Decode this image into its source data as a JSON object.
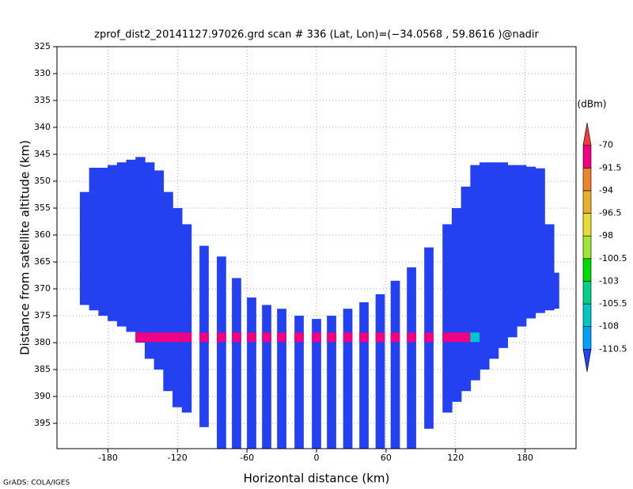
{
  "chart_data": {
    "type": "profile",
    "title": "zprof_dist2_20141127.97026.grd  scan # 336  (Lat, Lon)=(−34.0568 , 59.8616 )@nadir",
    "x_label": "Horizontal distance (km)",
    "y_label": "Distance from satellite altitude (km)",
    "footer": "GrADS: COLA/IGES",
    "xlim": [
      -224,
      224
    ],
    "ylim": [
      325,
      399.7
    ],
    "xticks": [
      -180,
      -120,
      -60,
      0,
      60,
      120,
      180
    ],
    "yticks": [
      325,
      330,
      335,
      340,
      345,
      350,
      355,
      360,
      365,
      370,
      375,
      380,
      385,
      390,
      395
    ],
    "grid": true,
    "beam_dbm": -112,
    "surface_altitude": 379,
    "beams": [
      {
        "x": -200,
        "top": 352,
        "bottom": 373,
        "width": 8.5,
        "surface": null
      },
      {
        "x": -192,
        "top": 347.5,
        "bottom": 374,
        "width": 8.5,
        "surface": null
      },
      {
        "x": -184,
        "top": 347.5,
        "bottom": 375,
        "width": 8.5,
        "surface": null
      },
      {
        "x": -176,
        "top": 347,
        "bottom": 376,
        "width": 8.5,
        "surface": null
      },
      {
        "x": -168,
        "top": 346.5,
        "bottom": 377,
        "width": 8.5,
        "surface": null
      },
      {
        "x": -160,
        "top": 346,
        "bottom": 378,
        "width": 8.5,
        "surface": null
      },
      {
        "x": -152,
        "top": 345.5,
        "bottom": 380,
        "width": 8.5,
        "surface": -85
      },
      {
        "x": -144,
        "top": 346.5,
        "bottom": 383,
        "width": 8.5,
        "surface": -80
      },
      {
        "x": -136,
        "top": 348,
        "bottom": 385,
        "width": 8.5,
        "surface": -80
      },
      {
        "x": -128,
        "top": 352,
        "bottom": 389,
        "width": 8.5,
        "surface": -80
      },
      {
        "x": -120,
        "top": 355,
        "bottom": 392,
        "width": 8.5,
        "surface": -80
      },
      {
        "x": -112,
        "top": 358,
        "bottom": 393,
        "width": 8.5,
        "surface": -80
      },
      {
        "x": -97,
        "top": 362,
        "bottom": 395.7,
        "width": 8,
        "surface": -80
      },
      {
        "x": -82,
        "top": 364,
        "bottom": 399.7,
        "width": 8,
        "surface": -80
      },
      {
        "x": -69,
        "top": 368,
        "bottom": 399.7,
        "width": 8,
        "surface": -80
      },
      {
        "x": -56,
        "top": 371.6,
        "bottom": 399.7,
        "width": 8,
        "surface": -80
      },
      {
        "x": -43,
        "top": 373,
        "bottom": 399.7,
        "width": 8,
        "surface": -80
      },
      {
        "x": -30,
        "top": 373.7,
        "bottom": 399.7,
        "width": 8,
        "surface": -80
      },
      {
        "x": -15,
        "top": 375,
        "bottom": 399.7,
        "width": 8,
        "surface": -80
      },
      {
        "x": 0,
        "top": 375.6,
        "bottom": 399.7,
        "width": 8,
        "surface": -80
      },
      {
        "x": 13,
        "top": 375,
        "bottom": 399.7,
        "width": 8,
        "surface": -80
      },
      {
        "x": 27,
        "top": 373.7,
        "bottom": 399.7,
        "width": 8,
        "surface": -80
      },
      {
        "x": 41,
        "top": 372.5,
        "bottom": 399.7,
        "width": 8,
        "surface": -80
      },
      {
        "x": 55,
        "top": 371,
        "bottom": 399.7,
        "width": 8,
        "surface": -80
      },
      {
        "x": 68,
        "top": 368.5,
        "bottom": 399.7,
        "width": 8,
        "surface": -80
      },
      {
        "x": 82,
        "top": 366,
        "bottom": 399.7,
        "width": 8,
        "surface": -80
      },
      {
        "x": 97,
        "top": 362.3,
        "bottom": 396,
        "width": 8,
        "surface": -80
      },
      {
        "x": 113,
        "top": 358,
        "bottom": 393,
        "width": 8.5,
        "surface": -80
      },
      {
        "x": 121,
        "top": 355,
        "bottom": 391,
        "width": 8.5,
        "surface": -80
      },
      {
        "x": 129,
        "top": 351,
        "bottom": 389,
        "width": 8.5,
        "surface": -85
      },
      {
        "x": 137,
        "top": 347,
        "bottom": 387,
        "width": 8.5,
        "surface": -106
      },
      {
        "x": 145,
        "top": 346.5,
        "bottom": 385,
        "width": 8.5,
        "surface": null
      },
      {
        "x": 153,
        "top": 346.5,
        "bottom": 383,
        "width": 8.5,
        "surface": null
      },
      {
        "x": 161,
        "top": 346.5,
        "bottom": 381,
        "width": 8.5,
        "surface": null
      },
      {
        "x": 169,
        "top": 347,
        "bottom": 379,
        "width": 8.5,
        "surface": null
      },
      {
        "x": 177,
        "top": 347,
        "bottom": 377,
        "width": 8.5,
        "surface": null
      },
      {
        "x": 185,
        "top": 347.3,
        "bottom": 375.5,
        "width": 8.5,
        "surface": null
      },
      {
        "x": 193,
        "top": 347.6,
        "bottom": 374.5,
        "width": 8.5,
        "surface": null
      },
      {
        "x": 201,
        "top": 358,
        "bottom": 374,
        "width": 8.5,
        "surface": null
      },
      {
        "x": 207,
        "top": 367,
        "bottom": 373.7,
        "width": 5,
        "surface": null
      }
    ],
    "colorbar": {
      "unit": "(dBm)",
      "levels": [
        -110.5,
        -108,
        -105.5,
        -103,
        -100.5,
        -98,
        -96.5,
        -94,
        -91.5,
        -70
      ],
      "colors": [
        "#2341f0",
        "#00a0ff",
        "#00c8c8",
        "#00d28c",
        "#00dc00",
        "#a0e632",
        "#e6dc32",
        "#e6af2d",
        "#f08228",
        "#f00082",
        "#f03c3c"
      ]
    }
  }
}
